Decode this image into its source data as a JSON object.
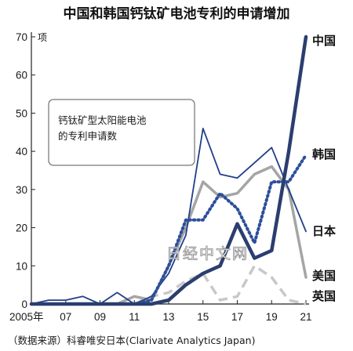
{
  "chart_data": {
    "type": "line",
    "title": "中国和韩国钙钛矿电池专利的申请增加",
    "ylabel": "项",
    "annotation": [
      "钙钛矿型太阳能电池",
      "的专利申请数"
    ],
    "source": "（数据来源）科睿唯安日本(Clarivate Analytics Japan)",
    "watermark": "日经中文网",
    "x": [
      2005,
      2006,
      2007,
      2008,
      2009,
      2010,
      2011,
      2012,
      2013,
      2014,
      2015,
      2016,
      2017,
      2018,
      2019,
      2020,
      2021
    ],
    "xtick_values": [
      2005,
      2007,
      2009,
      2011,
      2013,
      2015,
      2017,
      2019,
      2021
    ],
    "xtick_labels": [
      "2005年",
      "07",
      "09",
      "11",
      "13",
      "15",
      "17",
      "19",
      "21"
    ],
    "ylim": [
      0,
      70
    ],
    "yticks": [
      0,
      10,
      20,
      30,
      40,
      50,
      60,
      70
    ],
    "grid": false,
    "series": [
      {
        "name": "中国",
        "color": "#2b3e6f",
        "style": "solid",
        "width": 4.5,
        "values": [
          0,
          0,
          0,
          0,
          0,
          0,
          0,
          0,
          1,
          5,
          8,
          10,
          21,
          12,
          14,
          40,
          70
        ]
      },
      {
        "name": "韩国",
        "color": "#2d4f9a",
        "style": "dotted",
        "width": 4,
        "values": [
          0,
          0,
          0,
          0,
          0,
          0,
          0,
          1,
          10,
          22,
          22,
          29,
          25,
          16,
          32,
          32,
          39
        ]
      },
      {
        "name": "日本",
        "color": "#213f88",
        "style": "solid",
        "width": 1.8,
        "values": [
          0,
          1,
          1,
          2,
          0,
          3,
          0,
          2,
          8,
          18,
          46,
          34,
          33,
          37,
          41,
          30,
          19
        ]
      },
      {
        "name": "美国",
        "color": "#a5a5a5",
        "style": "solid",
        "width": 3.5,
        "values": [
          0,
          0,
          0,
          0,
          0,
          0,
          2,
          1,
          10,
          20,
          32,
          28,
          29,
          34,
          36,
          30,
          7
        ]
      },
      {
        "name": "英国",
        "color": "#c8c8c8",
        "style": "dashed",
        "width": 3.5,
        "values": [
          0,
          0,
          0,
          0,
          0,
          0,
          0,
          2,
          3,
          6,
          8,
          1,
          2,
          10,
          7,
          1,
          0
        ]
      }
    ]
  }
}
